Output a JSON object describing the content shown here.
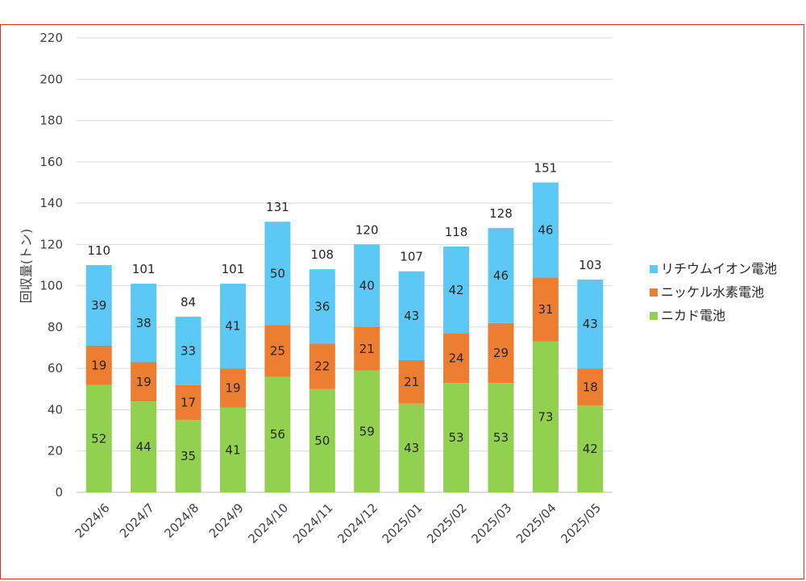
{
  "chart_data": {
    "type": "bar",
    "stacked": true,
    "categories": [
      "2024/6",
      "2024/7",
      "2024/8",
      "2024/9",
      "2024/10",
      "2024/11",
      "2024/12",
      "2025/01",
      "2025/02",
      "2025/03",
      "2025/04",
      "2025/05"
    ],
    "series": [
      {
        "name": "ニカド電池",
        "color": "#92d050",
        "values": [
          52,
          44,
          35,
          41,
          56,
          50,
          59,
          43,
          53,
          53,
          73,
          42
        ]
      },
      {
        "name": "ニッケル水素電池",
        "color": "#ed7d31",
        "values": [
          19,
          19,
          17,
          19,
          25,
          22,
          21,
          21,
          24,
          29,
          31,
          18
        ]
      },
      {
        "name": "リチウムイオン電池",
        "color": "#5bc8f5",
        "values": [
          39,
          38,
          33,
          41,
          50,
          36,
          40,
          43,
          42,
          46,
          46,
          43
        ]
      }
    ],
    "totals": [
      "110",
      "101",
      "84",
      "101",
      "131",
      "108",
      "120",
      "107",
      "118",
      "128",
      "151",
      "103"
    ],
    "ylabel": "回収量(トン)",
    "xlabel": "",
    "ylim": [
      0,
      220
    ],
    "yticks": [
      "0",
      "20",
      "40",
      "60",
      "80",
      "100",
      "120",
      "140",
      "160",
      "180",
      "200",
      "220"
    ],
    "grid": true,
    "legend_position": "right",
    "legend_order": [
      "リチウムイオン電池",
      "ニッケル水素電池",
      "ニカド電池"
    ]
  }
}
